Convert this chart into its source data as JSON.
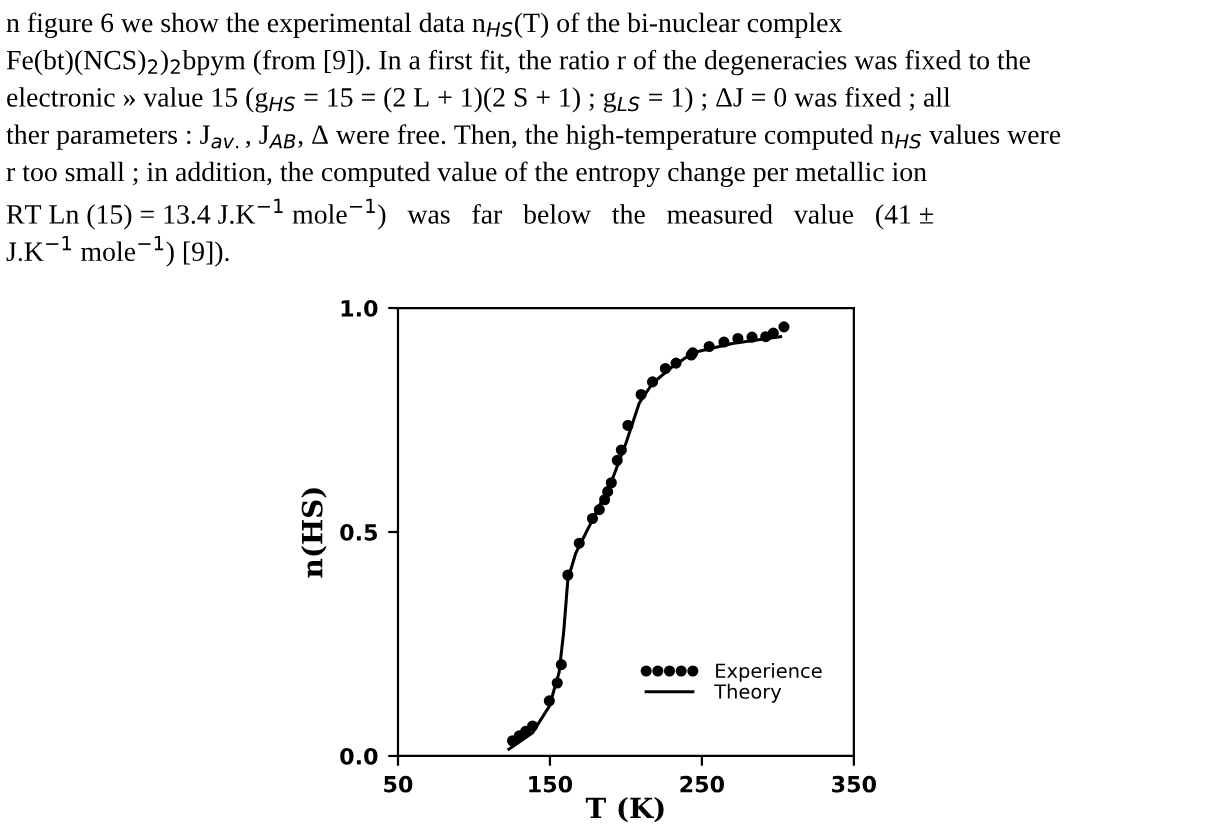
{
  "chart_data": {
    "type": "scatter",
    "annotations": [
      "n figure 6 we show the experimental data n$_{HS}$(T) of the bi-nuclear complex",
      "Fe(bt)(NCS)$_{2}$)$_{2}$bpym (from [9]). In a first fit, the ratio r of the degeneracies was fixed to the",
      "electronic » value 15 (g$_{HS}$ = 15 = (2 L + 1)(2 S + 1) ; g$_{LS}$ = 1) ; ΔJ = 0 was fixed ; all",
      "ther parameters : J$_{av.}$, J$_{AB}$, Δ were free. Then, the high-temperature computed n$_{HS}$ values were",
      "r too small ; in addition, the computed value of the entropy change per metallic ion",
      "RT Ln (15) = 13.4 J.K$^{−1}$ mole$^{−1}$)   was   far   below   the   measured   value   (41 ±",
      "J.K$^{−1}$ mole$^{−1}$) [9])."
    ],
    "xlabel": "T (K)",
    "ylabel": "n(HS)",
    "xlim": [
      50,
      350
    ],
    "xticks": [
      50,
      150,
      250,
      350
    ],
    "ylim": [
      0,
      1
    ],
    "yticks": [
      {
        "value": 0,
        "label": "0.0"
      },
      {
        "value": 0.5,
        "label": "0.5"
      },
      {
        "value": 1,
        "label": "1.0"
      }
    ],
    "grid": false,
    "legend": "bottom right",
    "series": [
      {
        "name": "Experience",
        "marker": "circle",
        "color": "#000000",
        "x": [
          125.4,
          129.8,
          134,
          138.6,
          149.6,
          154.8,
          157.5,
          161.8,
          169.3,
          178,
          182.5,
          186,
          188,
          190.4,
          194.3,
          197,
          201.3,
          210,
          217.5,
          226,
          233,
          243,
          244,
          254.8,
          264.5,
          273.7,
          283,
          292,
          297,
          304
        ],
        "values": [
          0.034,
          0.045,
          0.055,
          0.067,
          0.123,
          0.163,
          0.204,
          0.404,
          0.475,
          0.53,
          0.55,
          0.572,
          0.59,
          0.61,
          0.66,
          0.683,
          0.738,
          0.807,
          0.835,
          0.865,
          0.877,
          0.895,
          0.9,
          0.914,
          0.924,
          0.932,
          0.935,
          0.936,
          0.944,
          0.958
        ]
      },
      {
        "name": "Theory",
        "type": "line",
        "line_style": "solid",
        "color": "#000000",
        "x": [
          123,
          138.6,
          149.6,
          156,
          159,
          161.8,
          167,
          178,
          191,
          200,
          208.8,
          217.5,
          230.7,
          244,
          270,
          301.8
        ],
        "values": [
          0.015,
          0.052,
          0.111,
          0.186,
          0.275,
          0.394,
          0.453,
          0.527,
          0.617,
          0.698,
          0.788,
          0.832,
          0.869,
          0.9,
          0.921,
          0.936
        ]
      }
    ]
  }
}
